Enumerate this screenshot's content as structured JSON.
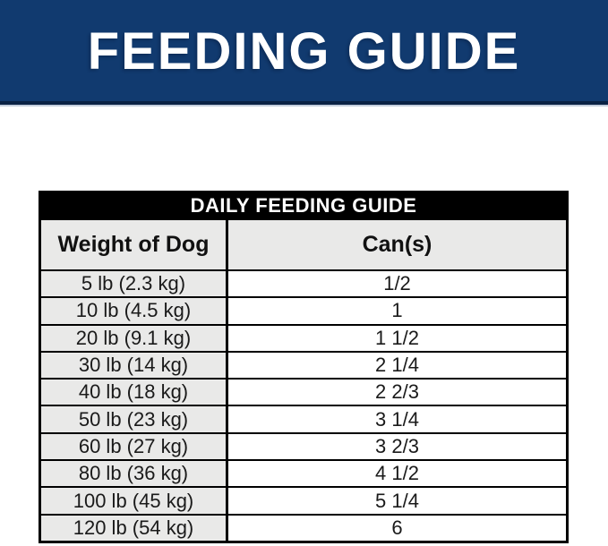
{
  "banner": {
    "title": "FEEDING GUIDE",
    "bg_color": "#113a6f",
    "text_color": "#ffffff"
  },
  "table": {
    "title": "DAILY FEEDING GUIDE",
    "columns": [
      "Weight of Dog",
      "Can(s)"
    ],
    "rows": [
      {
        "weight": "5 lb (2.3 kg)",
        "cans": "1/2"
      },
      {
        "weight": "10 lb (4.5 kg)",
        "cans": "1"
      },
      {
        "weight": "20 lb (9.1 kg)",
        "cans": "1 1/2"
      },
      {
        "weight": "30 lb (14 kg)",
        "cans": "2 1/4"
      },
      {
        "weight": "40 lb (18 kg)",
        "cans": "2 2/3"
      },
      {
        "weight": "50 lb (23 kg)",
        "cans": "3 1/4"
      },
      {
        "weight": "60 lb (27 kg)",
        "cans": "3 2/3"
      },
      {
        "weight": "80 lb (36 kg)",
        "cans": "4 1/2"
      },
      {
        "weight": "100 lb (45 kg)",
        "cans": "5 1/4"
      },
      {
        "weight": "120 lb (54 kg)",
        "cans": "6"
      }
    ],
    "colors": {
      "title_bar_bg": "#000000",
      "title_bar_text": "#ffffff",
      "cell_gray": "#e9e9e8",
      "border": "#000000"
    }
  },
  "chart_data": {
    "type": "table",
    "title": "DAILY FEEDING GUIDE",
    "columns": [
      "Weight of Dog",
      "Can(s)"
    ],
    "rows": [
      [
        "5 lb (2.3 kg)",
        "1/2"
      ],
      [
        "10 lb (4.5 kg)",
        "1"
      ],
      [
        "20 lb (9.1 kg)",
        "1 1/2"
      ],
      [
        "30 lb (14 kg)",
        "2 1/4"
      ],
      [
        "40 lb (18 kg)",
        "2 2/3"
      ],
      [
        "50 lb (23 kg)",
        "3 1/4"
      ],
      [
        "60 lb (27 kg)",
        "3 2/3"
      ],
      [
        "80 lb (36 kg)",
        "4 1/2"
      ],
      [
        "100 lb (45 kg)",
        "5 1/4"
      ],
      [
        "120 lb (54 kg)",
        "6"
      ]
    ]
  }
}
